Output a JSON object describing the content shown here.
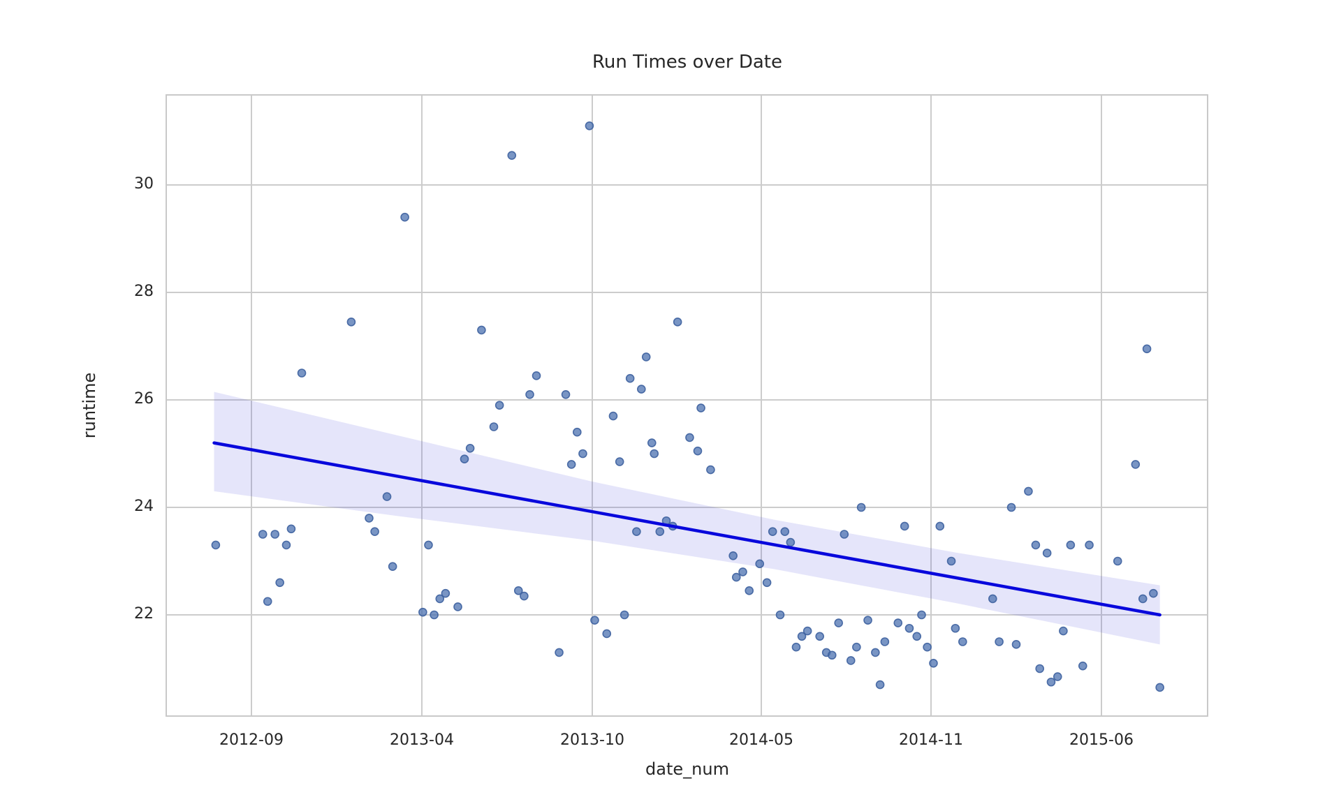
{
  "chart_data": {
    "type": "scatter",
    "title": "Run Times over Date",
    "xlabel": "date_num",
    "ylabel": "runtime",
    "x_tick_labels": [
      "2012-09",
      "2013-04",
      "2013-10",
      "2014-05",
      "2014-11",
      "2015-06"
    ],
    "y_ticks": [
      22,
      24,
      26,
      28,
      30
    ],
    "ylim": [
      20.35,
      31.65
    ],
    "grid": true,
    "legend": false,
    "marker_color": "#4C72B0",
    "regression_line_color": "#0808DC",
    "confidence_band_color": "#5050E0",
    "confidence_band_opacity": 0.15,
    "grid_color": "#CCCCCC",
    "points": [
      {
        "d": "2012-07-17",
        "v": 23.3
      },
      {
        "d": "2012-09-15",
        "v": 23.5
      },
      {
        "d": "2012-09-21",
        "v": 22.25
      },
      {
        "d": "2012-09-30",
        "v": 23.5
      },
      {
        "d": "2012-10-06",
        "v": 22.6
      },
      {
        "d": "2012-10-14",
        "v": 23.3
      },
      {
        "d": "2012-10-20",
        "v": 23.6
      },
      {
        "d": "2012-11-03",
        "v": 26.5
      },
      {
        "d": "2013-01-04",
        "v": 27.45
      },
      {
        "d": "2013-01-26",
        "v": 23.8
      },
      {
        "d": "2013-02-03",
        "v": 23.55
      },
      {
        "d": "2013-02-18",
        "v": 24.2
      },
      {
        "d": "2013-02-25",
        "v": 22.9
      },
      {
        "d": "2013-03-10",
        "v": 29.4
      },
      {
        "d": "2013-04-02",
        "v": 22.05
      },
      {
        "d": "2013-04-08",
        "v": 23.3
      },
      {
        "d": "2013-04-14",
        "v": 22.0
      },
      {
        "d": "2013-04-20",
        "v": 22.3
      },
      {
        "d": "2013-04-26",
        "v": 22.4
      },
      {
        "d": "2013-05-09",
        "v": 22.15
      },
      {
        "d": "2013-05-16",
        "v": 24.9
      },
      {
        "d": "2013-05-22",
        "v": 25.1
      },
      {
        "d": "2013-06-04",
        "v": 27.3
      },
      {
        "d": "2013-06-17",
        "v": 25.5
      },
      {
        "d": "2013-06-23",
        "v": 25.9
      },
      {
        "d": "2013-07-06",
        "v": 30.55
      },
      {
        "d": "2013-07-13",
        "v": 22.45
      },
      {
        "d": "2013-07-19",
        "v": 22.35
      },
      {
        "d": "2013-07-25",
        "v": 26.1
      },
      {
        "d": "2013-08-02",
        "v": 26.45
      },
      {
        "d": "2013-08-26",
        "v": 21.3
      },
      {
        "d": "2013-09-03",
        "v": 26.1
      },
      {
        "d": "2013-09-09",
        "v": 24.8
      },
      {
        "d": "2013-09-15",
        "v": 25.4
      },
      {
        "d": "2013-09-21",
        "v": 25.0
      },
      {
        "d": "2013-09-28",
        "v": 31.1
      },
      {
        "d": "2013-10-04",
        "v": 21.9
      },
      {
        "d": "2013-10-19",
        "v": 21.65
      },
      {
        "d": "2013-10-27",
        "v": 25.7
      },
      {
        "d": "2013-11-05",
        "v": 24.85
      },
      {
        "d": "2013-11-11",
        "v": 22.0
      },
      {
        "d": "2013-11-18",
        "v": 26.4
      },
      {
        "d": "2013-11-26",
        "v": 23.55
      },
      {
        "d": "2013-12-02",
        "v": 26.2
      },
      {
        "d": "2013-12-08",
        "v": 26.8
      },
      {
        "d": "2013-12-15",
        "v": 25.2
      },
      {
        "d": "2013-12-18",
        "v": 25.0
      },
      {
        "d": "2013-12-25",
        "v": 23.55
      },
      {
        "d": "2014-01-03",
        "v": 23.75
      },
      {
        "d": "2014-01-11",
        "v": 23.65
      },
      {
        "d": "2014-01-17",
        "v": 27.45
      },
      {
        "d": "2014-02-02",
        "v": 25.3
      },
      {
        "d": "2014-02-12",
        "v": 25.05
      },
      {
        "d": "2014-02-16",
        "v": 25.85
      },
      {
        "d": "2014-02-28",
        "v": 24.7
      },
      {
        "d": "2014-03-26",
        "v": 23.1
      },
      {
        "d": "2014-03-30",
        "v": 22.7
      },
      {
        "d": "2014-04-08",
        "v": 22.8
      },
      {
        "d": "2014-04-16",
        "v": 22.45
      },
      {
        "d": "2014-04-29",
        "v": 22.95
      },
      {
        "d": "2014-05-07",
        "v": 22.6
      },
      {
        "d": "2014-05-13",
        "v": 23.55
      },
      {
        "d": "2014-05-21",
        "v": 22.0
      },
      {
        "d": "2014-05-26",
        "v": 23.55
      },
      {
        "d": "2014-06-02",
        "v": 23.35
      },
      {
        "d": "2014-06-08",
        "v": 21.4
      },
      {
        "d": "2014-06-14",
        "v": 21.6
      },
      {
        "d": "2014-06-20",
        "v": 21.7
      },
      {
        "d": "2014-07-03",
        "v": 21.6
      },
      {
        "d": "2014-07-10",
        "v": 21.3
      },
      {
        "d": "2014-07-16",
        "v": 21.25
      },
      {
        "d": "2014-07-23",
        "v": 21.85
      },
      {
        "d": "2014-07-29",
        "v": 23.5
      },
      {
        "d": "2014-08-06",
        "v": 21.15
      },
      {
        "d": "2014-08-12",
        "v": 21.4
      },
      {
        "d": "2014-08-17",
        "v": 24.0
      },
      {
        "d": "2014-08-24",
        "v": 21.9
      },
      {
        "d": "2014-09-02",
        "v": 21.3
      },
      {
        "d": "2014-09-07",
        "v": 20.7
      },
      {
        "d": "2014-09-12",
        "v": 21.5
      },
      {
        "d": "2014-09-26",
        "v": 21.85
      },
      {
        "d": "2014-10-03",
        "v": 23.65
      },
      {
        "d": "2014-10-08",
        "v": 21.75
      },
      {
        "d": "2014-10-16",
        "v": 21.6
      },
      {
        "d": "2014-10-21",
        "v": 22.0
      },
      {
        "d": "2014-10-27",
        "v": 21.4
      },
      {
        "d": "2014-11-04",
        "v": 21.1
      },
      {
        "d": "2014-11-12",
        "v": 23.65
      },
      {
        "d": "2014-11-26",
        "v": 23.0
      },
      {
        "d": "2014-12-01",
        "v": 21.75
      },
      {
        "d": "2014-12-10",
        "v": 21.5
      },
      {
        "d": "2015-01-17",
        "v": 22.3
      },
      {
        "d": "2015-01-25",
        "v": 21.5
      },
      {
        "d": "2015-02-10",
        "v": 24.0
      },
      {
        "d": "2015-02-16",
        "v": 21.45
      },
      {
        "d": "2015-03-01",
        "v": 24.3
      },
      {
        "d": "2015-03-10",
        "v": 23.3
      },
      {
        "d": "2015-03-15",
        "v": 21.0
      },
      {
        "d": "2015-03-24",
        "v": 23.15
      },
      {
        "d": "2015-03-29",
        "v": 20.75
      },
      {
        "d": "2015-04-07",
        "v": 20.85
      },
      {
        "d": "2015-04-14",
        "v": 21.7
      },
      {
        "d": "2015-04-23",
        "v": 23.3
      },
      {
        "d": "2015-05-08",
        "v": 21.05
      },
      {
        "d": "2015-05-16",
        "v": 23.3
      },
      {
        "d": "2015-06-21",
        "v": 23.0
      },
      {
        "d": "2015-07-13",
        "v": 24.8
      },
      {
        "d": "2015-07-22",
        "v": 22.3
      },
      {
        "d": "2015-07-27",
        "v": 26.95
      },
      {
        "d": "2015-08-05",
        "v": 22.4
      },
      {
        "d": "2015-08-13",
        "v": 20.65
      }
    ],
    "regression": {
      "fit": "linear",
      "start": {
        "d": "2012-07-15",
        "v": 25.2
      },
      "end": {
        "d": "2015-08-13",
        "v": 22.0
      }
    },
    "confidence_band": [
      {
        "d": "2012-07-15",
        "lower": 24.3,
        "upper": 26.15
      },
      {
        "d": "2013-03-01",
        "lower": 23.84,
        "upper": 25.34
      },
      {
        "d": "2013-10-01",
        "lower": 23.38,
        "upper": 24.48
      },
      {
        "d": "2014-05-15",
        "lower": 22.85,
        "upper": 23.77
      },
      {
        "d": "2014-12-01",
        "lower": 22.22,
        "upper": 23.16
      },
      {
        "d": "2015-08-13",
        "lower": 21.45,
        "upper": 22.55
      }
    ]
  }
}
